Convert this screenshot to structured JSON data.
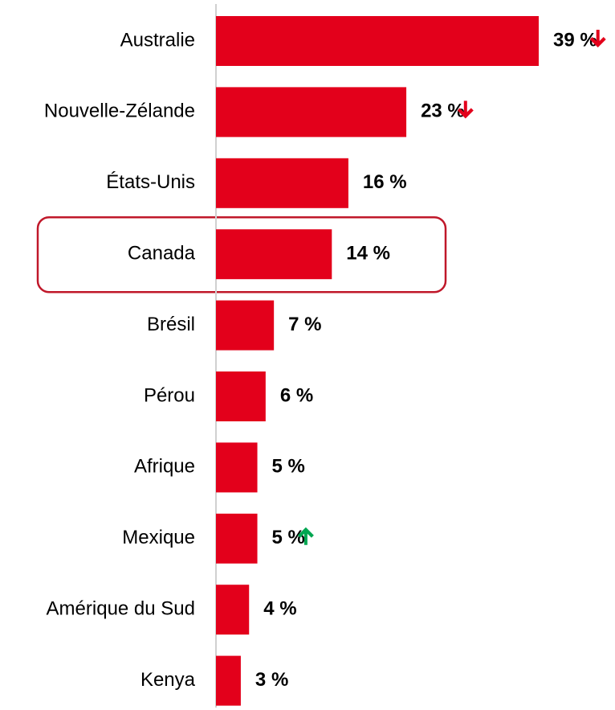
{
  "chart_data": {
    "type": "barh",
    "categories": [
      "Australie",
      "Nouvelle-Zélande",
      "États-Unis",
      "Canada",
      "Brésil",
      "Pérou",
      "Afrique",
      "Mexique",
      "Amérique du Sud",
      "Kenya"
    ],
    "values": [
      39,
      23,
      16,
      14,
      7,
      6,
      5,
      5,
      4,
      3
    ],
    "value_labels": [
      "39 %",
      "23 %",
      "16 %",
      "14 %",
      "7 %",
      "6 %",
      "5 %",
      "5 %",
      "4 %",
      "3 %"
    ],
    "color": "#e3001b",
    "trend": [
      "down",
      "down",
      null,
      null,
      null,
      null,
      null,
      "up",
      null,
      null
    ],
    "trend_colors": {
      "down": "#e3001b",
      "up": "#00a651"
    },
    "highlight": 3,
    "highlight_color": "#c0182a"
  }
}
